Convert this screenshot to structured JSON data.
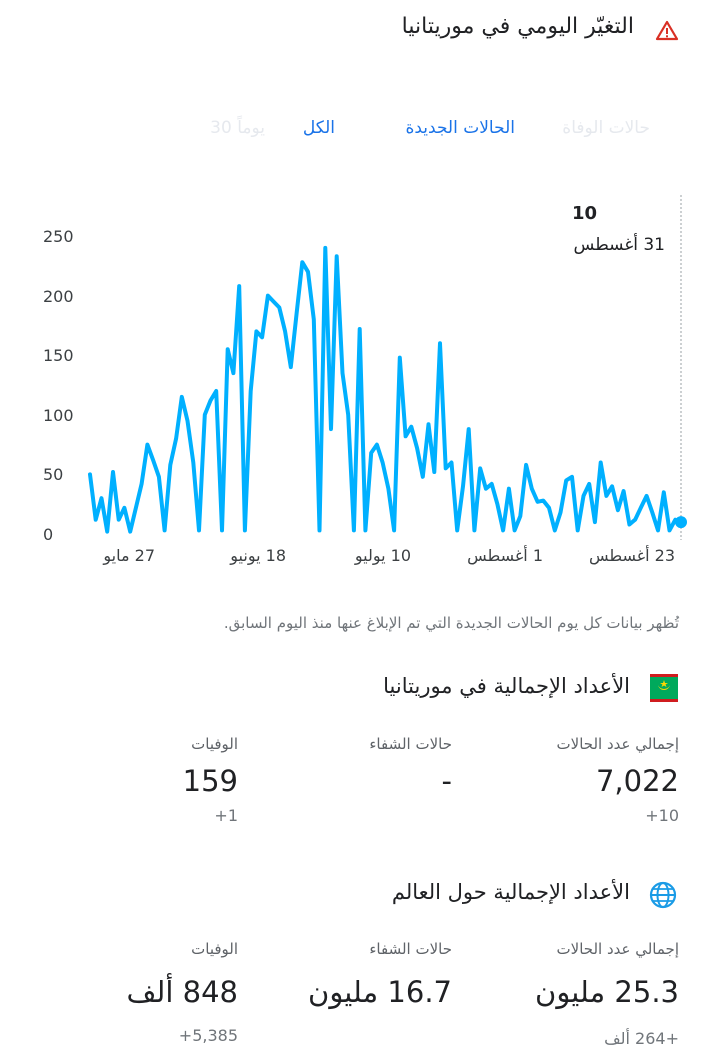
{
  "header": {
    "title": "التغيّر اليومي في موريتانيا",
    "warning_icon": "warning-triangle-icon",
    "accent_color": "#d93025"
  },
  "tabs": [
    {
      "label": "حالات الوفاة",
      "state": "faded"
    },
    {
      "label": "الحالات الجديدة",
      "state": "active"
    },
    {
      "label": "الكل",
      "state": "active"
    },
    {
      "label": "يوماً 30",
      "state": "faded"
    }
  ],
  "tooltip": {
    "value": "10",
    "date": "31 أغسطس"
  },
  "chart_data": {
    "type": "line",
    "color": "#00b0ff",
    "ylim": [
      0,
      250
    ],
    "yticks": [
      "0",
      "50",
      "100",
      "150",
      "200",
      "250"
    ],
    "xticks": [
      "27 مايو",
      "18 يونيو",
      "10 يوليو",
      "1 أغسطس",
      "23 أغسطس"
    ],
    "series": [
      {
        "values": [
          50,
          12,
          30,
          2,
          52,
          12,
          22,
          2,
          22,
          42,
          75,
          62,
          48,
          3,
          58,
          80,
          115,
          95,
          60,
          3,
          100,
          112,
          120,
          3,
          155,
          135,
          208,
          3,
          120,
          170,
          165,
          200,
          195,
          190,
          170,
          140,
          185,
          228,
          220,
          180,
          3,
          240,
          88,
          233,
          135,
          100,
          3,
          172,
          3,
          68,
          75,
          60,
          38,
          3,
          148,
          82,
          90,
          72,
          48,
          92,
          52,
          160,
          55,
          60,
          3,
          40,
          88,
          3,
          55,
          38,
          42,
          25,
          3,
          38,
          3,
          15,
          58,
          38,
          27,
          28,
          22,
          3,
          18,
          45,
          48,
          3,
          32,
          42,
          10,
          60,
          32,
          40,
          20,
          36,
          8,
          12,
          22,
          32,
          18,
          3,
          35,
          3,
          12,
          10
        ]
      }
    ]
  },
  "note": "تُظهر بيانات كل يوم الحالات الجديدة التي تم الإبلاغ عنها منذ اليوم السابق.",
  "country": {
    "title": "الأعداد الإجمالية في موريتانيا",
    "flag_icon": "mauritania-flag-icon",
    "cases_label": "إجمالي عدد الحالات",
    "cases_value": "7,022",
    "cases_delta": "+10",
    "recovered_label": "حالات الشفاء",
    "recovered_value": "-",
    "deaths_label": "الوفيات",
    "deaths_value": "159",
    "deaths_delta": "+1"
  },
  "world": {
    "title": "الأعداد الإجمالية حول العالم",
    "globe_icon": "globe-icon",
    "cases_label": "إجمالي عدد الحالات",
    "cases_value": "25.3 مليون",
    "cases_delta": "+264 ألف",
    "recovered_label": "حالات الشفاء",
    "recovered_value": "16.7 مليون",
    "deaths_label": "الوفيات",
    "deaths_value": "848 ألف",
    "deaths_delta": "+5,385"
  }
}
